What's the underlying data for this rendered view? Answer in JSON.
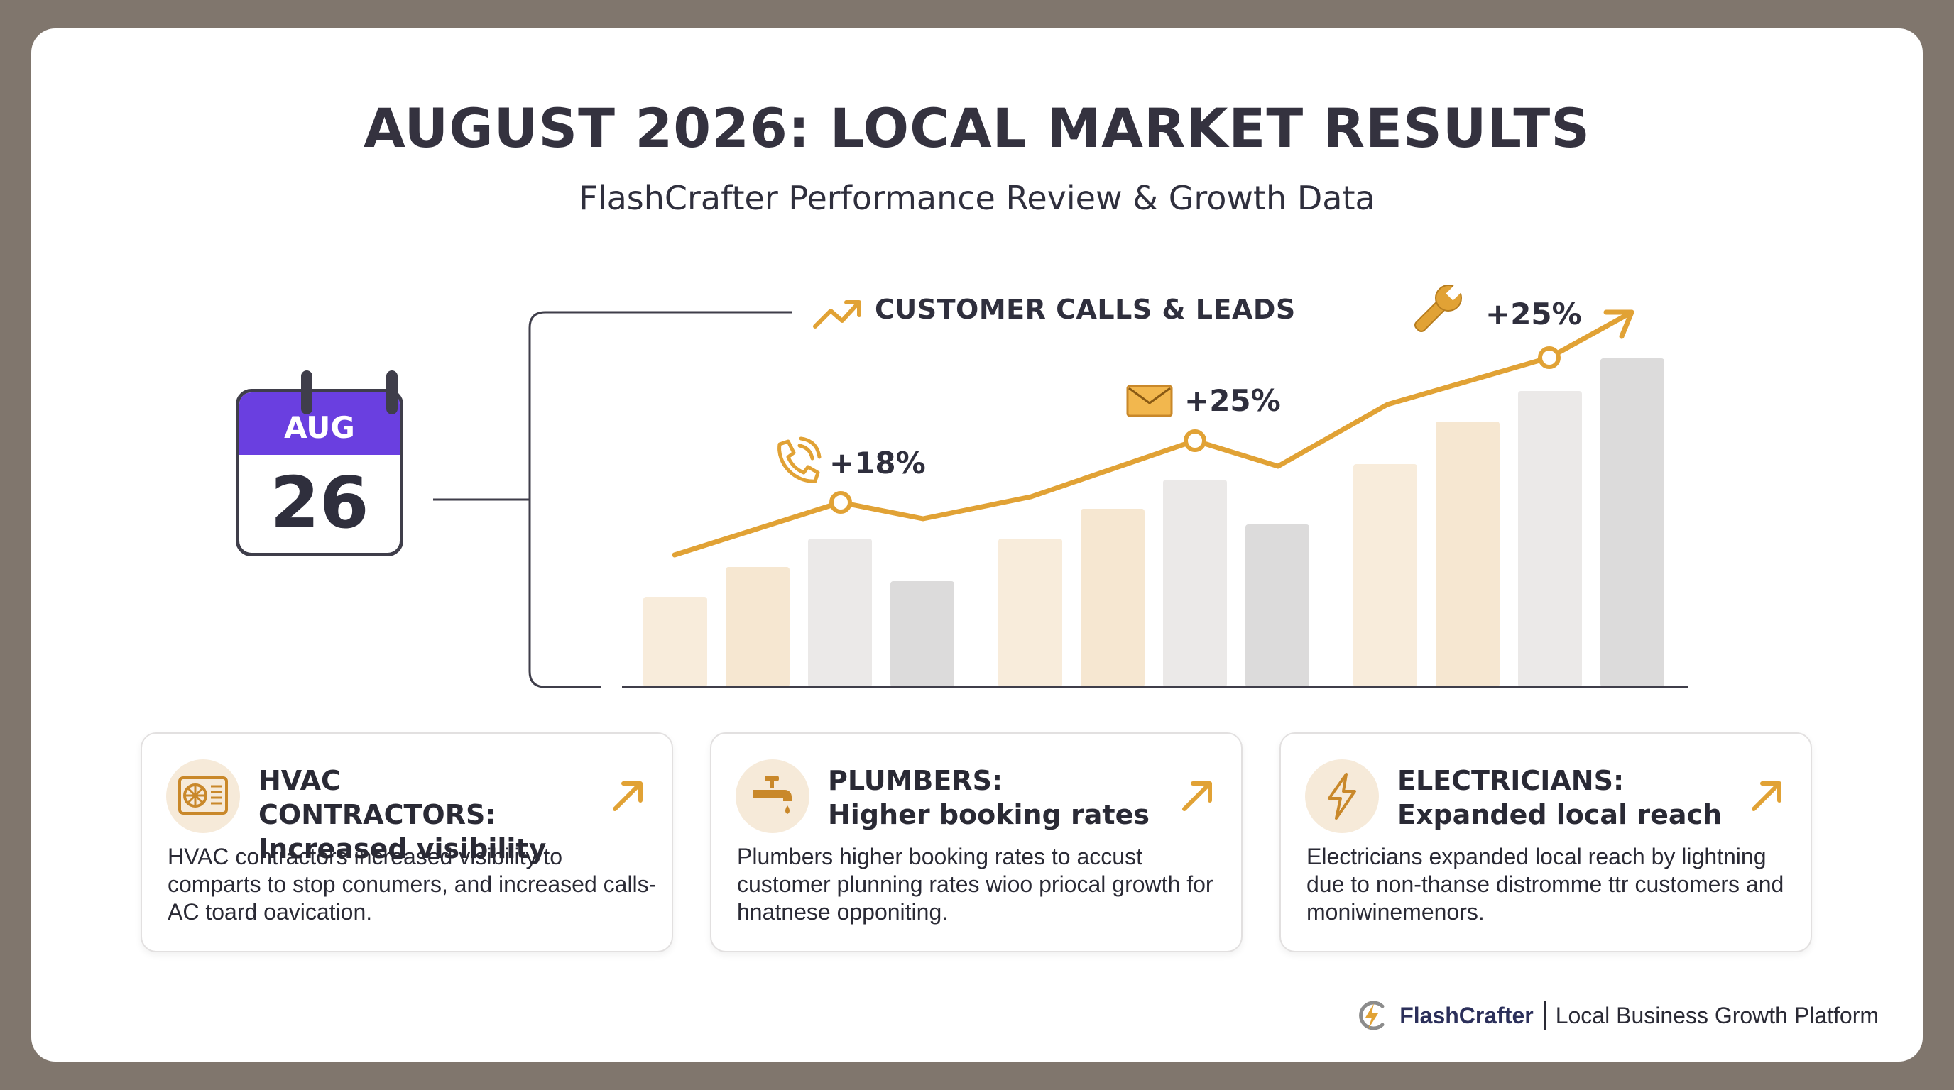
{
  "header": {
    "title": "AUGUST 2026: LOCAL MARKET RESULTS",
    "subtitle": "FlashCrafter Performance Review & Growth Data"
  },
  "calendar": {
    "month": "AUG",
    "day": "26"
  },
  "chart_data": {
    "type": "bar",
    "title": "CUSTOMER CALLS & LEADS",
    "bars": [
      {
        "value": 127,
        "color": "#f8ecdb"
      },
      {
        "value": 169,
        "color": "#f6e7d1"
      },
      {
        "value": 209,
        "color": "#ebe9e8"
      },
      {
        "value": 149,
        "color": "#dcdbdb"
      },
      {
        "value": 209,
        "color": "#f8ecdb"
      },
      {
        "value": 251,
        "color": "#f6e7d1"
      },
      {
        "value": 292,
        "color": "#ebe9e8"
      },
      {
        "value": 229,
        "color": "#dcdbdb"
      },
      {
        "value": 314,
        "color": "#f8ecdb"
      },
      {
        "value": 374,
        "color": "#f6e7d1"
      },
      {
        "value": 417,
        "color": "#ebe9e8"
      },
      {
        "value": 463,
        "color": "#dcdbdb"
      }
    ],
    "trend": [
      186,
      260,
      237,
      268,
      347,
      311,
      398,
      464
    ],
    "trend_labels": [
      "+18%",
      "+25%",
      "+25%"
    ],
    "trend_label_icons": [
      "phone-icon",
      "envelope-icon",
      "wrench-icon"
    ],
    "colors": {
      "line": "#e1a235",
      "axis": "#3f3e4a"
    }
  },
  "cards": [
    {
      "icon": "air-conditioner-icon",
      "title_line1": "HVAC CONTRACTORS:",
      "title_line2": "Increased visibility",
      "body": "HVAC contractors increased visibility to comparts to stop conumers, and increased calls-AC toard oavication."
    },
    {
      "icon": "faucet-icon",
      "title_line1": "PLUMBERS:",
      "title_line2": "Higher booking rates",
      "body": "Plumbers higher booking rates to accust customer plunning rates wioo priocal growth for hnatnese opponiting."
    },
    {
      "icon": "lightning-bolt-icon",
      "title_line1": "ELECTRICIANS:",
      "title_line2": "Expanded local reach",
      "body": "Electricians expanded local reach by lightning due to non-thanse distromme ttr customers and moniwinemenors."
    }
  ],
  "footer": {
    "brand": "FlashCrafter",
    "tagline": "Local Business Growth Platform"
  }
}
